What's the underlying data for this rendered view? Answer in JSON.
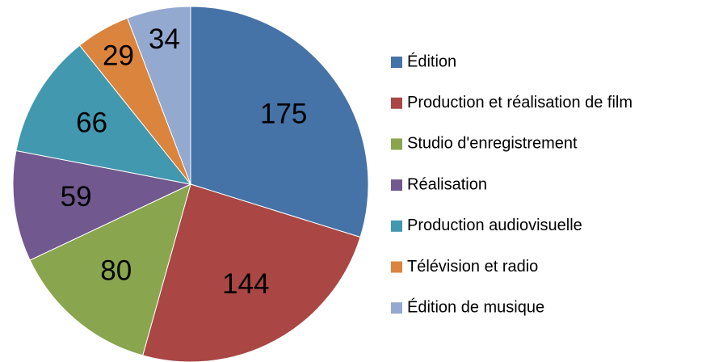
{
  "chart_data": {
    "type": "pie",
    "categories": [
      "Édition",
      "Production et réalisation de film",
      "Studio d'enregistrement",
      "Réalisation",
      "Production audiovisuelle",
      "Télévision et radio",
      "Édition de musique"
    ],
    "values": [
      175,
      144,
      80,
      59,
      66,
      29,
      34
    ],
    "colors": [
      "#4572a7",
      "#aa4643",
      "#89a54e",
      "#71588f",
      "#4198af",
      "#db843d",
      "#93a9cf"
    ],
    "legend": "right"
  }
}
